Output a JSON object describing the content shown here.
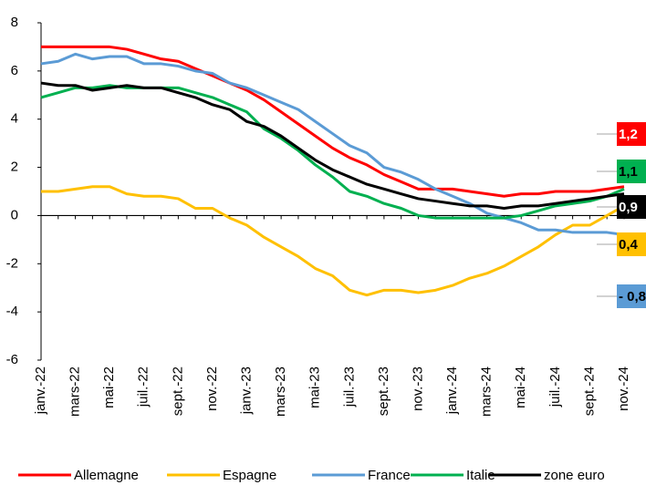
{
  "chart_data": {
    "type": "line",
    "categories": [
      "janv.-22",
      null,
      "mars-22",
      null,
      "mai-22",
      null,
      "juil.-22",
      null,
      "sept.-22",
      null,
      "nov.-22",
      null,
      "janv.-23",
      null,
      "mars-23",
      null,
      "mai-23",
      null,
      "juil.-23",
      null,
      "sept.-23",
      null,
      "nov.-23",
      null,
      "janv.-24",
      null,
      "mars-24",
      null,
      "mai-24",
      null,
      "juil.-24",
      null,
      "sept.-24",
      null,
      "nov.-24"
    ],
    "series": [
      {
        "name": "Allemagne",
        "color": "#ff0000",
        "values": [
          7,
          7,
          7,
          7,
          7,
          6.9,
          6.7,
          6.5,
          6.4,
          6.1,
          5.8,
          5.5,
          5.2,
          4.8,
          4.3,
          3.8,
          3.3,
          2.8,
          2.4,
          2.1,
          1.7,
          1.4,
          1.1,
          1.1,
          1.1,
          1.0,
          0.9,
          0.8,
          0.9,
          0.9,
          1.0,
          1.0,
          1.0,
          1.1,
          1.2
        ]
      },
      {
        "name": "Espagne",
        "color": "#ffc000",
        "values": [
          1.0,
          1.0,
          1.1,
          1.2,
          1.2,
          0.9,
          0.8,
          0.8,
          0.7,
          0.3,
          0.3,
          -0.1,
          -0.4,
          -0.9,
          -1.3,
          -1.7,
          -2.2,
          -2.5,
          -3.1,
          -3.3,
          -3.1,
          -3.1,
          -3.2,
          -3.1,
          -2.9,
          -2.6,
          -2.4,
          -2.1,
          -1.7,
          -1.3,
          -0.8,
          -0.4,
          -0.4,
          0.0,
          0.4
        ]
      },
      {
        "name": "France",
        "color": "#5b9bd5",
        "values": [
          6.3,
          6.4,
          6.7,
          6.5,
          6.6,
          6.6,
          6.3,
          6.3,
          6.2,
          6.0,
          5.9,
          5.5,
          5.3,
          5.0,
          4.7,
          4.4,
          3.9,
          3.4,
          2.9,
          2.6,
          2.0,
          1.8,
          1.5,
          1.1,
          0.8,
          0.5,
          0.1,
          -0.1,
          -0.3,
          -0.6,
          -0.6,
          -0.7,
          -0.7,
          -0.7,
          -0.8
        ]
      },
      {
        "name": "Italie",
        "color": "#00b050",
        "values": [
          4.9,
          5.1,
          5.3,
          5.3,
          5.4,
          5.3,
          5.3,
          5.3,
          5.3,
          5.1,
          4.9,
          4.6,
          4.3,
          3.6,
          3.2,
          2.7,
          2.1,
          1.6,
          1.0,
          0.8,
          0.5,
          0.3,
          0.0,
          -0.1,
          -0.1,
          -0.1,
          -0.1,
          -0.1,
          0.0,
          0.2,
          0.4,
          0.5,
          0.6,
          0.8,
          1.1
        ]
      },
      {
        "name": "zone euro",
        "color": "#000000",
        "values": [
          5.5,
          5.4,
          5.4,
          5.2,
          5.3,
          5.4,
          5.3,
          5.3,
          5.1,
          4.9,
          4.6,
          4.4,
          3.9,
          3.7,
          3.3,
          2.8,
          2.3,
          1.9,
          1.6,
          1.3,
          1.1,
          0.9,
          0.7,
          0.6,
          0.5,
          0.4,
          0.4,
          0.3,
          0.4,
          0.4,
          0.5,
          0.6,
          0.7,
          0.8,
          0.9
        ]
      }
    ],
    "ylim": [
      -6,
      8
    ],
    "yticks": [
      -6,
      -4,
      -2,
      0,
      2,
      4,
      6,
      8
    ],
    "annotations": [
      {
        "text": "1,2",
        "color": "#ff0000",
        "text_color": "#ffffff"
      },
      {
        "text": "1,1",
        "color": "#00b050",
        "text_color": "#000000"
      },
      {
        "text": "0,9",
        "color": "#000000",
        "text_color": "#ffffff"
      },
      {
        "text": "0,4",
        "color": "#ffc000",
        "text_color": "#000000"
      },
      {
        "text": "- 0,8",
        "color": "#5b9bd5",
        "text_color": "#000000"
      }
    ],
    "legend": "bottom"
  }
}
